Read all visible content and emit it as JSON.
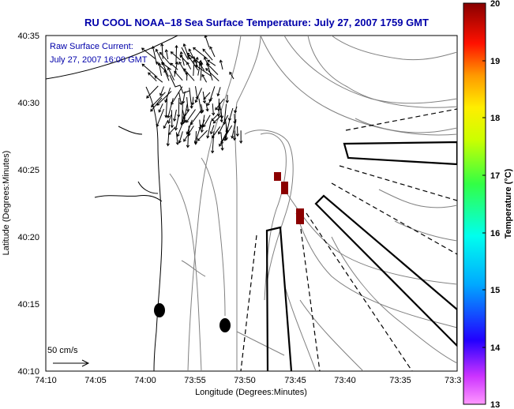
{
  "title": "RU COOL  NOAA–18  Sea Surface Temperature:  July 27, 2007 1759 GMT",
  "annotation": {
    "line1": "Raw Surface Current:",
    "line2": "July 27, 2007 16:00 GMT"
  },
  "scale_label": "50 cm/s",
  "axes": {
    "xlabel": "Longitude (Degrees:Minutes)",
    "ylabel": "Latitude (Degrees:Minutes)",
    "x_ticks": [
      "74:10",
      "74:05",
      "74:00",
      "73:55",
      "73:50",
      "73:45",
      "73:40",
      "73:35",
      "73:3"
    ],
    "y_ticks": [
      "40:35",
      "40:30",
      "40:25",
      "40:20",
      "40:15",
      "40:10"
    ]
  },
  "colorbar": {
    "label": "Temperature (°C)",
    "min": 13,
    "max": 20,
    "ticks": [
      "20",
      "19",
      "18",
      "17",
      "16",
      "15",
      "14",
      "13"
    ]
  },
  "colors": {
    "title": "#0000aa",
    "annotation": "#0000aa",
    "sst_patch": "#8b0000",
    "land_line": "#000000",
    "bathymetry": "#808080"
  },
  "icons": {
    "current_vectors": "arrow-field",
    "scale_arrow": "right-arrow"
  }
}
